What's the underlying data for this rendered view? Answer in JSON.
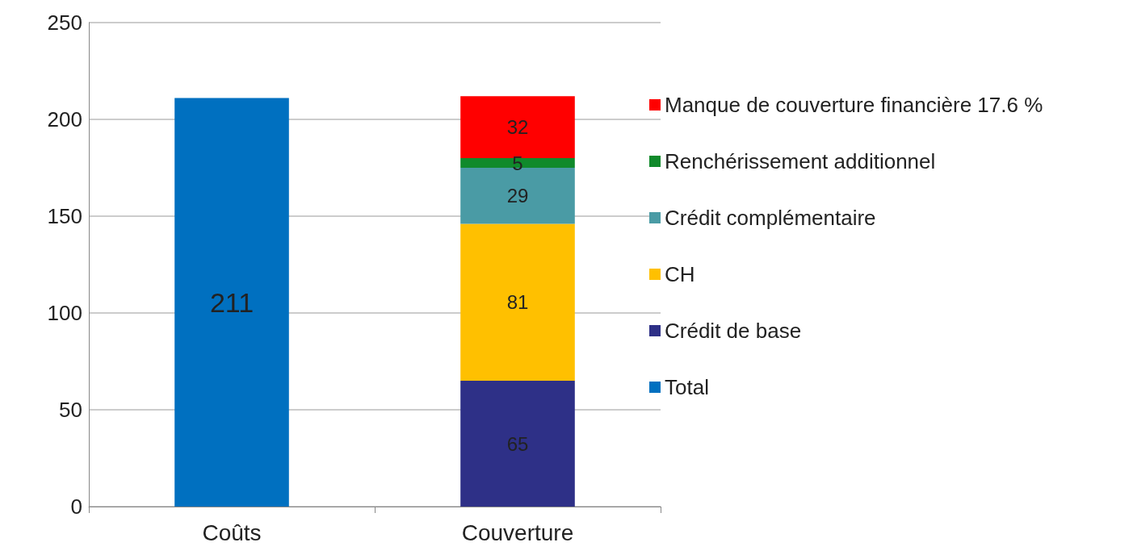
{
  "chart_data": {
    "type": "bar",
    "stacked": true,
    "categories": [
      "Coûts",
      "Couverture"
    ],
    "series": [
      {
        "name": "Total",
        "color": "#0070c0",
        "values": [
          211,
          null
        ]
      },
      {
        "name": "Crédit de base",
        "color": "#2e3087",
        "values": [
          null,
          65
        ]
      },
      {
        "name": "CH",
        "color": "#ffc000",
        "values": [
          null,
          81
        ]
      },
      {
        "name": "Crédit complémentaire",
        "color": "#4a9ba5",
        "values": [
          null,
          29
        ]
      },
      {
        "name": "Renchérissement additionnel",
        "color": "#108a2b",
        "values": [
          null,
          5
        ]
      },
      {
        "name": "Manque de couverture financière 17.6 %",
        "color": "#ff0000",
        "values": [
          null,
          32
        ]
      }
    ],
    "ylim": [
      0,
      250
    ],
    "yticks": [
      0,
      50,
      100,
      150,
      200,
      250
    ],
    "grid": "y",
    "legend": "right",
    "data_labels": true
  }
}
